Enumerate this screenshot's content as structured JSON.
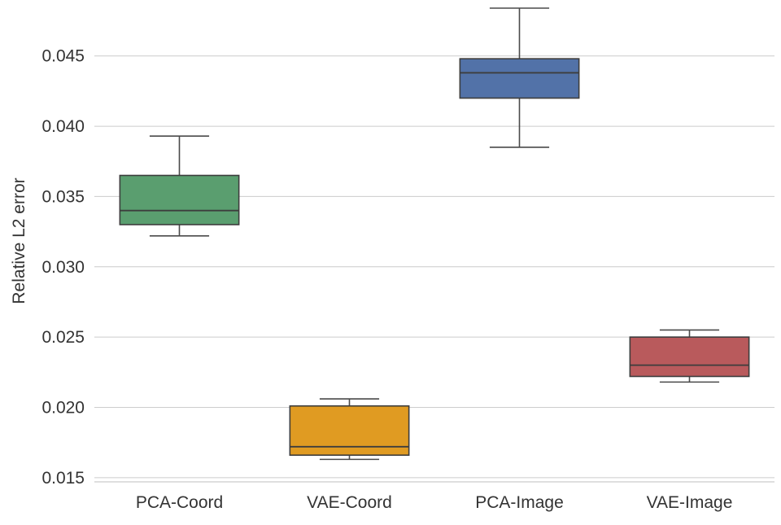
{
  "chart_data": {
    "type": "box",
    "title": "",
    "xlabel": "",
    "ylabel": "Relative L2 error",
    "ylim": [
      0.0147,
      0.0484
    ],
    "yticks": [
      "0.015",
      "0.020",
      "0.025",
      "0.030",
      "0.035",
      "0.040",
      "0.045"
    ],
    "ytick_values": [
      0.015,
      0.02,
      0.025,
      0.03,
      0.035,
      0.04,
      0.045
    ],
    "grid": true,
    "categories": [
      "PCA-Coord",
      "VAE-Coord",
      "PCA-Image",
      "VAE-Image"
    ],
    "series": [
      {
        "name": "PCA-Coord",
        "whisker_low": 0.0322,
        "q1": 0.033,
        "median": 0.034,
        "q3": 0.0365,
        "whisker_high": 0.0393,
        "color": "#5a9e6f"
      },
      {
        "name": "VAE-Coord",
        "whisker_low": 0.0163,
        "q1": 0.0166,
        "median": 0.0172,
        "q3": 0.0201,
        "whisker_high": 0.0206,
        "color": "#e09b22"
      },
      {
        "name": "PCA-Image",
        "whisker_low": 0.0385,
        "q1": 0.042,
        "median": 0.0438,
        "q3": 0.0448,
        "whisker_high": 0.0484,
        "color": "#5272a8"
      },
      {
        "name": "VAE-Image",
        "whisker_low": 0.0218,
        "q1": 0.0222,
        "median": 0.023,
        "q3": 0.025,
        "whisker_high": 0.0255,
        "color": "#b95a5c"
      }
    ]
  }
}
